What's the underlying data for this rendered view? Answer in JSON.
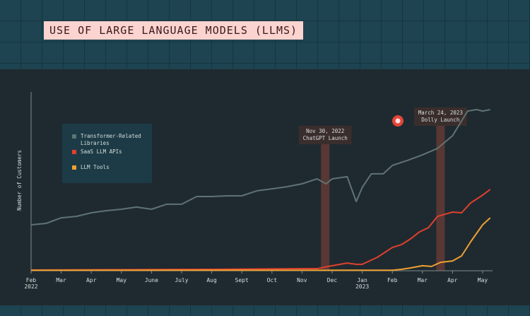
{
  "chart_data": {
    "type": "line",
    "title": "USE OF LARGE LANGUAGE MODELS (LLMS)",
    "ylabel": "Number of Customers",
    "xlim": [
      0,
      15.4
    ],
    "ylim": [
      0,
      100
    ],
    "xticks": [
      {
        "value": 0,
        "label": "Feb 2022"
      },
      {
        "value": 1,
        "label": "Mar"
      },
      {
        "value": 2,
        "label": "Apr"
      },
      {
        "value": 3,
        "label": "May"
      },
      {
        "value": 4,
        "label": "June"
      },
      {
        "value": 5,
        "label": "July"
      },
      {
        "value": 6,
        "label": "Aug"
      },
      {
        "value": 7,
        "label": "Sept"
      },
      {
        "value": 8,
        "label": "Oct"
      },
      {
        "value": 9,
        "label": "Nov"
      },
      {
        "value": 10,
        "label": "Dec"
      },
      {
        "value": 11,
        "label": "Jan 2023"
      },
      {
        "value": 12,
        "label": "Feb"
      },
      {
        "value": 13,
        "label": "Mar"
      },
      {
        "value": 14,
        "label": "Apr"
      },
      {
        "value": 15,
        "label": "May"
      }
    ],
    "series": [
      {
        "name": "Transformer-Related Libraries",
        "color": "#5f7373",
        "x": [
          0,
          0.5,
          1,
          1.5,
          2,
          2.5,
          3,
          3.5,
          4,
          4.5,
          5,
          5.5,
          6,
          6.5,
          7,
          7.5,
          8,
          8.5,
          9,
          9.5,
          9.8,
          10,
          10.5,
          10.8,
          11,
          11.3,
          11.7,
          12,
          12.5,
          13,
          13.5,
          14,
          14.5,
          14.8,
          15,
          15.25
        ],
        "values": [
          25.7,
          26.5,
          29.6,
          30.4,
          32.4,
          33.6,
          34.4,
          35.6,
          34.4,
          37.2,
          37.2,
          41.5,
          41.5,
          41.9,
          41.9,
          44.7,
          45.8,
          47.0,
          48.6,
          51.4,
          48.6,
          51.4,
          52.6,
          38.7,
          46.6,
          54.2,
          54.2,
          58.9,
          61.7,
          64.8,
          68.4,
          75.5,
          89.3,
          90.1,
          89.3,
          90.1
        ]
      },
      {
        "name": "SaaS LLM APIs",
        "color": "#e0402e",
        "x": [
          0,
          3,
          6,
          9,
          9.5,
          10,
          10.5,
          10.8,
          11,
          11.5,
          12,
          12.3,
          12.6,
          12.9,
          13.2,
          13.5,
          14,
          14.3,
          14.6,
          15,
          15.25
        ],
        "values": [
          0.4,
          0.6,
          0.8,
          1.2,
          1.2,
          2.8,
          4.3,
          3.6,
          3.6,
          7.5,
          13,
          14.6,
          17.8,
          21.7,
          24.1,
          30.4,
          32.8,
          32.4,
          37.9,
          42.3,
          45.5
        ]
      },
      {
        "name": "LLM Tools",
        "color": "#f0a030",
        "x": [
          0,
          6,
          12,
          12.3,
          12.6,
          13,
          13.3,
          13.6,
          14,
          14.3,
          14.6,
          15,
          15.25
        ],
        "values": [
          0.3,
          0.3,
          0.3,
          0.8,
          1.6,
          2.8,
          2.4,
          4.7,
          5.5,
          8.3,
          16.2,
          25.7,
          29.6
        ]
      }
    ],
    "annotations": [
      {
        "x": 9.77,
        "text": [
          "Nov 30, 2022",
          "ChatGPT Launch"
        ]
      },
      {
        "x": 13.6,
        "text": [
          "March 24, 2023",
          "Dolly Launch"
        ]
      }
    ]
  }
}
